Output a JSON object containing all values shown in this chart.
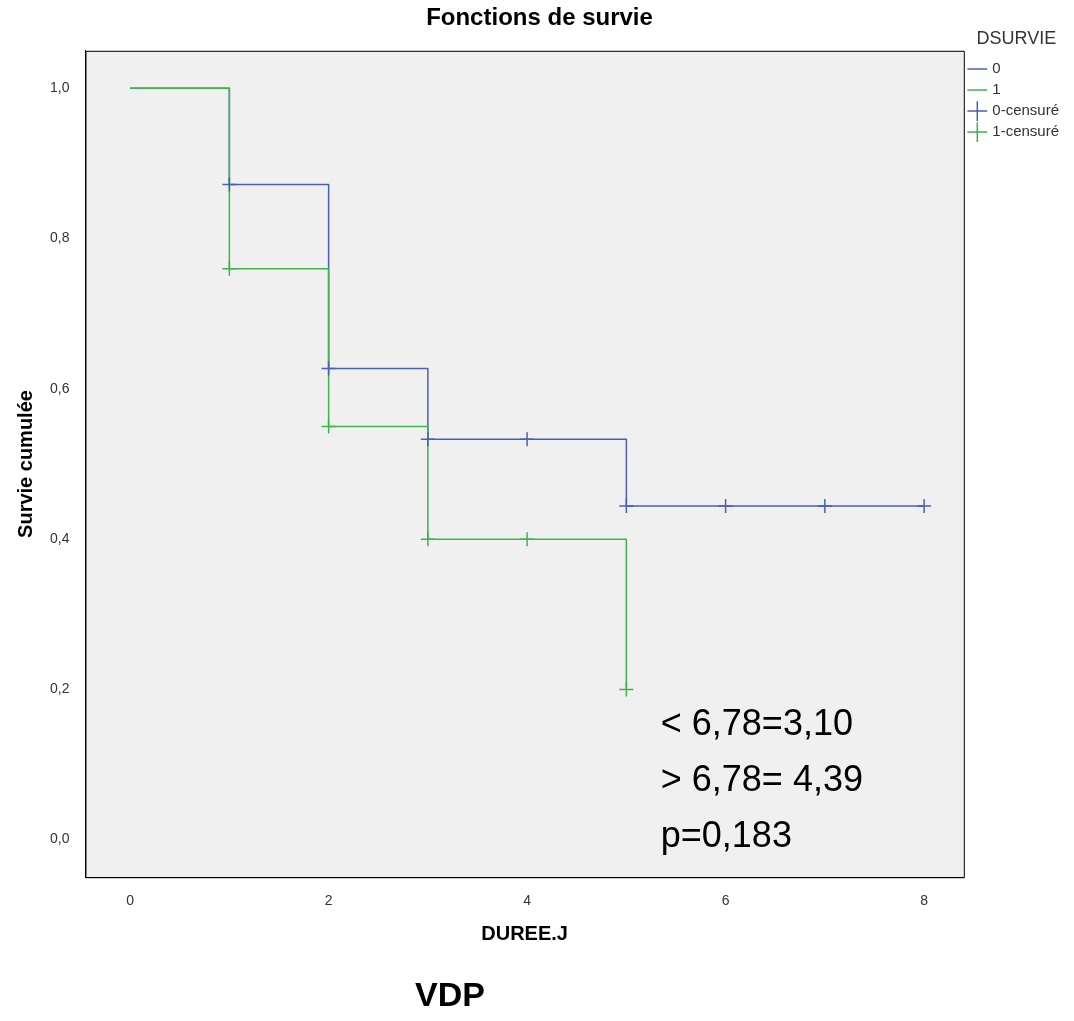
{
  "chart_data": {
    "type": "step",
    "title": "Fonctions de survie",
    "xlabel": "DUREE.J",
    "ylabel": "Survie cumulée",
    "legend_title": "DSURVIE",
    "legend": "top right",
    "grid": false,
    "xlim": [
      -0.45,
      8.4
    ],
    "xticks": [
      0,
      2,
      4,
      6,
      8
    ],
    "ylim": [
      -0.05,
      1.05
    ],
    "yticks": [
      {
        "value": 0,
        "label": "0,0"
      },
      {
        "value": 0.2,
        "label": "0,2"
      },
      {
        "value": 0.4,
        "label": "0,4"
      },
      {
        "value": 0.6,
        "label": "0,6"
      },
      {
        "value": 0.8,
        "label": "0,8"
      },
      {
        "value": 1,
        "label": "1,0"
      }
    ],
    "series": [
      {
        "name": "0",
        "color": "#4a5fb5",
        "x": [
          0,
          1,
          2,
          3,
          5,
          8
        ],
        "values": [
          1,
          0.872,
          0.627,
          0.533,
          0.444,
          0.444
        ]
      },
      {
        "name": "1",
        "color": "#3cb44b",
        "x": [
          0,
          1,
          2,
          3,
          5
        ],
        "values": [
          1,
          0.76,
          0.55,
          0.4,
          0.2
        ]
      },
      {
        "name": "0-censuré",
        "type": "scatter",
        "marker": "cross",
        "color": "#4a5fb5",
        "x": [
          1,
          2,
          3,
          4,
          5,
          6,
          7,
          8
        ],
        "values": [
          0.872,
          0.627,
          0.533,
          0.533,
          0.444,
          0.444,
          0.444,
          0.444
        ]
      },
      {
        "name": "1-censuré",
        "type": "scatter",
        "marker": "cross",
        "color": "#3cb44b",
        "x": [
          1,
          2,
          3,
          4,
          5
        ],
        "values": [
          0.76,
          0.55,
          0.4,
          0.4,
          0.2
        ]
      }
    ],
    "annotations": [
      "< 6,78=3,10",
      "> 6,78= 4,39",
      "p=0,183",
      "VDP"
    ]
  }
}
